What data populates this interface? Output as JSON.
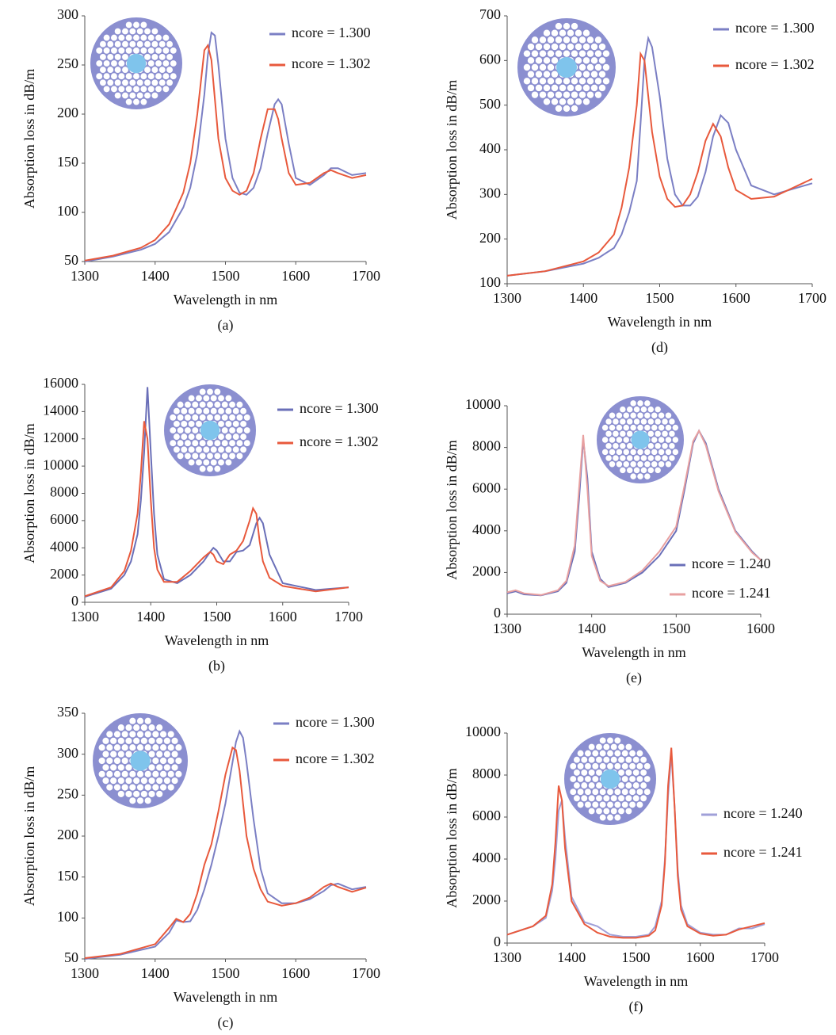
{
  "chart_data": [
    {
      "type": "line",
      "caption": "(a)",
      "x_label": "Wavelength in nm",
      "y_label": "Absorption loss in dB/m",
      "xlim": [
        1300,
        1700
      ],
      "xticks": [
        1300,
        1400,
        1500,
        1600,
        1700
      ],
      "ylim": [
        50,
        300
      ],
      "yticks": [
        50,
        100,
        150,
        200,
        250,
        300
      ],
      "x": [
        1300,
        1340,
        1380,
        1400,
        1420,
        1440,
        1450,
        1460,
        1470,
        1475,
        1480,
        1485,
        1490,
        1500,
        1510,
        1520,
        1530,
        1540,
        1550,
        1560,
        1570,
        1575,
        1580,
        1590,
        1600,
        1620,
        1640,
        1650,
        1660,
        1680,
        1700
      ],
      "series": [
        {
          "name": "ncore = 1.300",
          "color": "#7b7fc4",
          "values": [
            50,
            55,
            62,
            68,
            80,
            105,
            125,
            160,
            220,
            260,
            283,
            280,
            250,
            175,
            135,
            120,
            118,
            125,
            145,
            180,
            210,
            215,
            210,
            170,
            135,
            128,
            138,
            145,
            145,
            138,
            140
          ]
        },
        {
          "name": "ncore = 1.302",
          "color": "#e8593c",
          "values": [
            51,
            56,
            64,
            72,
            88,
            120,
            150,
            200,
            265,
            270,
            255,
            215,
            175,
            135,
            122,
            118,
            122,
            140,
            175,
            205,
            205,
            195,
            175,
            140,
            128,
            130,
            140,
            143,
            140,
            135,
            138
          ]
        }
      ]
    },
    {
      "type": "line",
      "caption": "(b)",
      "x_label": "Wavelength in nm",
      "y_label": "Absorption loss in dB/m",
      "xlim": [
        1300,
        1700
      ],
      "xticks": [
        1300,
        1400,
        1500,
        1600,
        1700
      ],
      "ylim": [
        0,
        16000
      ],
      "yticks": [
        0,
        2000,
        4000,
        6000,
        8000,
        10000,
        12000,
        14000,
        16000
      ],
      "x": [
        1300,
        1340,
        1360,
        1370,
        1380,
        1385,
        1390,
        1395,
        1400,
        1405,
        1410,
        1420,
        1440,
        1460,
        1480,
        1490,
        1495,
        1500,
        1510,
        1520,
        1530,
        1540,
        1550,
        1555,
        1560,
        1565,
        1570,
        1580,
        1600,
        1650,
        1700
      ],
      "series": [
        {
          "name": "ncore = 1.300",
          "color": "#6a6fb8",
          "values": [
            400,
            1000,
            2000,
            3000,
            5000,
            7500,
            11000,
            15800,
            11000,
            6500,
            3500,
            1700,
            1400,
            2000,
            3000,
            3700,
            4000,
            3800,
            3000,
            3000,
            3700,
            3800,
            4200,
            5000,
            5800,
            6200,
            5800,
            3500,
            1400,
            900,
            1100
          ]
        },
        {
          "name": "ncore = 1.302",
          "color": "#e8593c",
          "values": [
            450,
            1100,
            2300,
            3800,
            6500,
            9500,
            13300,
            12000,
            7500,
            4000,
            2400,
            1500,
            1500,
            2300,
            3300,
            3700,
            3500,
            3000,
            2800,
            3500,
            3800,
            4500,
            6000,
            6900,
            6500,
            4500,
            3000,
            1800,
            1200,
            800,
            1100
          ]
        }
      ]
    },
    {
      "type": "line",
      "caption": "(c)",
      "x_label": "Wavelength in nm",
      "y_label": "Absorption loss in dB/m",
      "xlim": [
        1300,
        1700
      ],
      "xticks": [
        1300,
        1400,
        1500,
        1600,
        1700
      ],
      "ylim": [
        50,
        350
      ],
      "yticks": [
        50,
        100,
        150,
        200,
        250,
        300,
        350
      ],
      "x": [
        1300,
        1350,
        1400,
        1420,
        1430,
        1440,
        1450,
        1460,
        1470,
        1480,
        1490,
        1500,
        1510,
        1515,
        1520,
        1525,
        1530,
        1540,
        1550,
        1560,
        1580,
        1600,
        1620,
        1640,
        1650,
        1660,
        1680,
        1700
      ],
      "series": [
        {
          "name": "ncore = 1.300",
          "color": "#7b7fc4",
          "values": [
            50,
            55,
            65,
            82,
            97,
            95,
            96,
            110,
            135,
            165,
            200,
            240,
            290,
            315,
            328,
            320,
            290,
            220,
            160,
            130,
            118,
            118,
            123,
            133,
            140,
            142,
            135,
            138
          ]
        },
        {
          "name": "ncore = 1.302",
          "color": "#e8593c",
          "values": [
            51,
            56,
            68,
            88,
            99,
            95,
            105,
            130,
            165,
            190,
            230,
            275,
            308,
            305,
            280,
            240,
            200,
            160,
            135,
            120,
            115,
            118,
            125,
            138,
            142,
            138,
            132,
            137
          ]
        }
      ]
    },
    {
      "type": "line",
      "caption": "(d)",
      "x_label": "Wavelength in nm",
      "y_label": "Absorption loss in dB/m",
      "xlim": [
        1300,
        1700
      ],
      "xticks": [
        1300,
        1400,
        1500,
        1600,
        1700
      ],
      "ylim": [
        100,
        700
      ],
      "yticks": [
        100,
        200,
        300,
        400,
        500,
        600,
        700
      ],
      "x": [
        1300,
        1350,
        1400,
        1420,
        1440,
        1450,
        1460,
        1470,
        1475,
        1480,
        1485,
        1490,
        1500,
        1510,
        1520,
        1530,
        1540,
        1550,
        1560,
        1570,
        1580,
        1590,
        1600,
        1620,
        1650,
        1700
      ],
      "series": [
        {
          "name": "ncore = 1.300",
          "color": "#7b7fc4",
          "values": [
            118,
            128,
            145,
            158,
            180,
            210,
            260,
            330,
            460,
            600,
            650,
            630,
            520,
            380,
            300,
            275,
            275,
            295,
            350,
            430,
            477,
            460,
            400,
            320,
            300,
            325
          ]
        },
        {
          "name": "ncore = 1.302",
          "color": "#e8593c",
          "values": [
            118,
            128,
            150,
            170,
            210,
            270,
            360,
            500,
            615,
            600,
            520,
            440,
            340,
            290,
            272,
            275,
            300,
            350,
            420,
            458,
            430,
            360,
            310,
            290,
            295,
            335
          ]
        }
      ]
    },
    {
      "type": "line",
      "caption": "(e)",
      "x_label": "Wavelength in nm",
      "y_label": "Absorption loss in dB/m",
      "xlim": [
        1300,
        1600
      ],
      "xticks": [
        1300,
        1400,
        1500,
        1600
      ],
      "ylim": [
        0,
        10000
      ],
      "yticks": [
        0,
        2000,
        4000,
        6000,
        8000,
        10000
      ],
      "x": [
        1300,
        1310,
        1320,
        1340,
        1360,
        1370,
        1380,
        1385,
        1390,
        1395,
        1400,
        1410,
        1420,
        1440,
        1460,
        1480,
        1500,
        1510,
        1520,
        1527,
        1535,
        1550,
        1570,
        1590,
        1600
      ],
      "series": [
        {
          "name": "ncore = 1.240",
          "color": "#6a6fb8",
          "values": [
            1000,
            1100,
            950,
            900,
            1100,
            1500,
            3000,
            5500,
            8400,
            6500,
            3000,
            1700,
            1300,
            1500,
            2000,
            2800,
            4000,
            6000,
            8200,
            8800,
            8200,
            6000,
            4000,
            3000,
            2600
          ]
        },
        {
          "name": "ncore = 1.241",
          "color": "#e8a0a0",
          "values": [
            1050,
            1150,
            1000,
            920,
            1150,
            1600,
            3300,
            6000,
            8600,
            6000,
            2800,
            1600,
            1350,
            1550,
            2100,
            3000,
            4200,
            6200,
            8300,
            8800,
            8100,
            5900,
            3950,
            2950,
            2600
          ]
        }
      ]
    },
    {
      "type": "line",
      "caption": "(f)",
      "x_label": "Wavelength in nm",
      "y_label": "Absorption loss in dB/m",
      "xlim": [
        1300,
        1700
      ],
      "xticks": [
        1300,
        1400,
        1500,
        1600,
        1700
      ],
      "ylim": [
        0,
        10000
      ],
      "yticks": [
        0,
        2000,
        4000,
        6000,
        8000,
        10000
      ],
      "x": [
        1300,
        1340,
        1360,
        1370,
        1375,
        1380,
        1385,
        1390,
        1400,
        1420,
        1440,
        1460,
        1480,
        1500,
        1520,
        1530,
        1540,
        1545,
        1550,
        1555,
        1560,
        1565,
        1570,
        1580,
        1600,
        1620,
        1640,
        1660,
        1680,
        1700
      ],
      "series": [
        {
          "name": "ncore = 1.240",
          "color": "#a0a0d8",
          "values": [
            400,
            800,
            1200,
            2500,
            4000,
            6300,
            6800,
            5000,
            2200,
            1000,
            800,
            400,
            300,
            300,
            400,
            800,
            2000,
            4000,
            7000,
            9000,
            6500,
            3500,
            1800,
            900,
            500,
            400,
            400,
            700,
            700,
            900
          ]
        },
        {
          "name": "ncore = 1.241",
          "color": "#e8593c",
          "values": [
            400,
            800,
            1300,
            2800,
            4800,
            7500,
            6800,
            4500,
            2000,
            900,
            500,
            300,
            250,
            250,
            350,
            600,
            1800,
            3800,
            7500,
            9300,
            6500,
            3200,
            1600,
            800,
            450,
            350,
            400,
            650,
            800,
            950
          ]
        }
      ]
    }
  ]
}
